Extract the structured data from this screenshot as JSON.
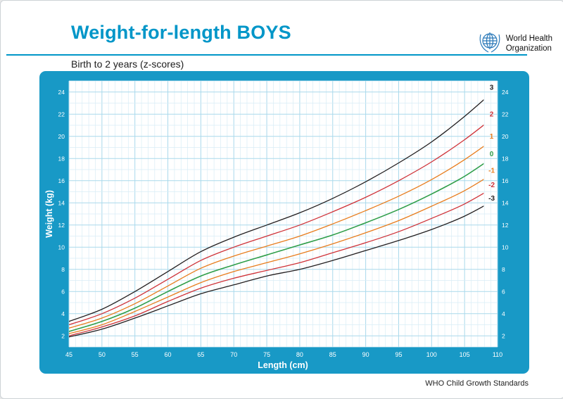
{
  "page": {
    "title": "Weight-for-length BOYS",
    "subtitle": "Birth to 2 years (z-scores)",
    "footer": "WHO Child Growth Standards",
    "logo": {
      "line1": "World Health",
      "line2": "Organization"
    }
  },
  "colors": {
    "accent": "#0096c8",
    "panel": "#1899c6",
    "plot_bg": "#ffffff",
    "grid_minor": "#d8edf6",
    "grid_major": "#a9d9ec",
    "tick_text": "#ffffff",
    "zscore_black": "#231f20",
    "zscore_red": "#cf3339",
    "zscore_orange": "#e87d1e",
    "zscore_green": "#2f9e49"
  },
  "chart_data": {
    "type": "line",
    "title": "Weight-for-length BOYS",
    "subtitle": "Birth to 2 years (z-scores)",
    "xlabel": "Length (cm)",
    "ylabel": "Weight (kg)",
    "xlim": [
      45,
      110
    ],
    "ylim": [
      1,
      25
    ],
    "x_ticks": [
      45,
      50,
      55,
      60,
      65,
      70,
      75,
      80,
      85,
      90,
      95,
      100,
      105,
      110
    ],
    "y_ticks": [
      2,
      4,
      6,
      8,
      10,
      12,
      14,
      16,
      18,
      20,
      22,
      24
    ],
    "x_grid_step": 1,
    "y_grid_step": 1,
    "x_major_step": 5,
    "y_major_step": 2,
    "grid": true,
    "legend_position": "curve-ends-right",
    "x": [
      45,
      50,
      55,
      60,
      65,
      70,
      75,
      80,
      85,
      90,
      95,
      100,
      105,
      110
    ],
    "series": [
      {
        "name": "3",
        "zscore": 3,
        "color": "#231f20",
        "values": [
          3.3,
          4.4,
          6.0,
          7.8,
          9.6,
          10.9,
          12.0,
          13.1,
          14.4,
          15.9,
          17.6,
          19.5,
          21.8,
          24.4
        ]
      },
      {
        "name": "2",
        "zscore": 2,
        "color": "#cf3339",
        "values": [
          3.0,
          4.0,
          5.4,
          7.1,
          8.8,
          10.0,
          11.0,
          12.0,
          13.2,
          14.5,
          16.0,
          17.7,
          19.7,
          22.0
        ]
      },
      {
        "name": "1",
        "zscore": 1,
        "color": "#e87d1e",
        "values": [
          2.7,
          3.6,
          4.9,
          6.5,
          8.1,
          9.2,
          10.1,
          11.0,
          12.1,
          13.3,
          14.6,
          16.1,
          17.9,
          20.0
        ]
      },
      {
        "name": "0",
        "zscore": 0,
        "color": "#2f9e49",
        "values": [
          2.4,
          3.3,
          4.5,
          6.0,
          7.4,
          8.4,
          9.3,
          10.2,
          11.1,
          12.2,
          13.4,
          14.8,
          16.4,
          18.4
        ]
      },
      {
        "name": "-1",
        "zscore": -1,
        "color": "#e87d1e",
        "values": [
          2.2,
          3.0,
          4.2,
          5.5,
          6.8,
          7.8,
          8.6,
          9.4,
          10.3,
          11.3,
          12.4,
          13.7,
          15.1,
          16.9
        ]
      },
      {
        "name": "-2",
        "zscore": -2,
        "color": "#cf3339",
        "values": [
          2.0,
          2.8,
          3.8,
          5.1,
          6.3,
          7.2,
          7.9,
          8.6,
          9.5,
          10.4,
          11.4,
          12.6,
          13.9,
          15.6
        ]
      },
      {
        "name": "-3",
        "zscore": -3,
        "color": "#231f20",
        "values": [
          1.9,
          2.6,
          3.6,
          4.7,
          5.8,
          6.6,
          7.4,
          8.0,
          8.8,
          9.7,
          10.6,
          11.6,
          12.8,
          14.4
        ]
      }
    ]
  }
}
